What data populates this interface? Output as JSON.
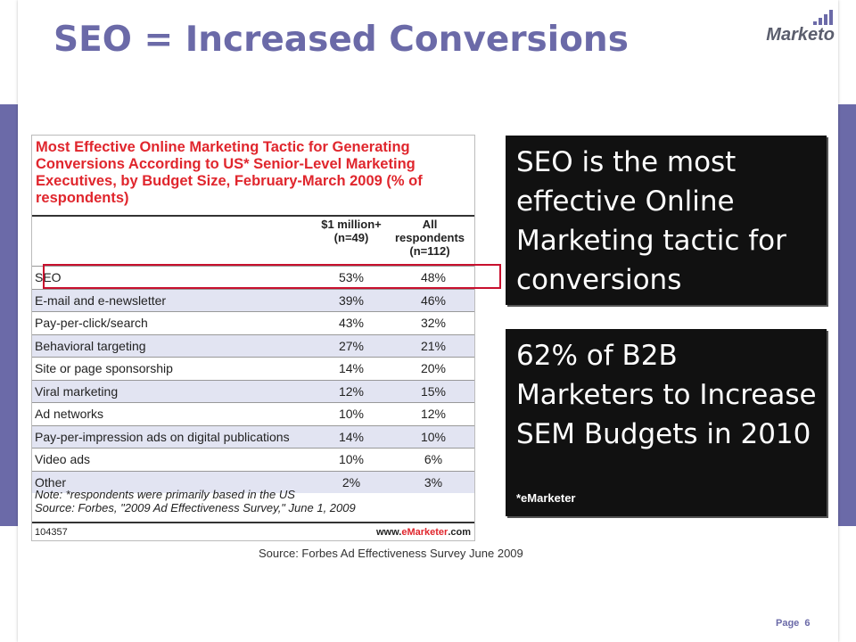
{
  "slide": {
    "title": "SEO = Increased Conversions",
    "logo_text": "Marketo",
    "page_label": "Page",
    "page_number": "6",
    "source_note": "Source: Forbes Ad Effectiveness Survey June 2009"
  },
  "figure": {
    "title": "Most Effective Online Marketing Tactic for Generating Conversions According to US* Senior-Level Marketing Executives, by Budget Size, February-March 2009 (% of respondents)",
    "col1_header": "$1 million+ (n=49)",
    "col2_header": "All respondents (n=112)",
    "rows": [
      {
        "label": "SEO",
        "v1": "53%",
        "v2": "48%"
      },
      {
        "label": "E-mail and e-newsletter",
        "v1": "39%",
        "v2": "46%"
      },
      {
        "label": "Pay-per-click/search",
        "v1": "43%",
        "v2": "32%"
      },
      {
        "label": "Behavioral targeting",
        "v1": "27%",
        "v2": "21%"
      },
      {
        "label": "Site or page sponsorship",
        "v1": "14%",
        "v2": "20%"
      },
      {
        "label": "Viral marketing",
        "v1": "12%",
        "v2": "15%"
      },
      {
        "label": "Ad networks",
        "v1": "10%",
        "v2": "12%"
      },
      {
        "label": "Pay-per-impression ads on digital publications",
        "v1": "14%",
        "v2": "10%"
      },
      {
        "label": "Video ads",
        "v1": "10%",
        "v2": "6%"
      },
      {
        "label": "Other",
        "v1": "2%",
        "v2": "3%"
      }
    ],
    "note_line1": "Note: *respondents were primarily based in the US",
    "note_line2": "Source: Forbes, \"2009 Ad Effectiveness Survey,\" June 1, 2009",
    "footer_id": "104357",
    "footer_site_prefix": "www.",
    "footer_site_brand": "eMarketer",
    "footer_site_suffix": ".com"
  },
  "callouts": {
    "first": "SEO is the most effective Online Marketing tactic for conversions",
    "second": "62% of B2B Marketers to Increase SEM Budgets in 2010",
    "second_source": "*eMarketer"
  },
  "colors": {
    "accent": "#6b6aa8",
    "figure_title": "#e0262d",
    "highlight_border": "#c8102e",
    "callout_bg": "#111111"
  }
}
